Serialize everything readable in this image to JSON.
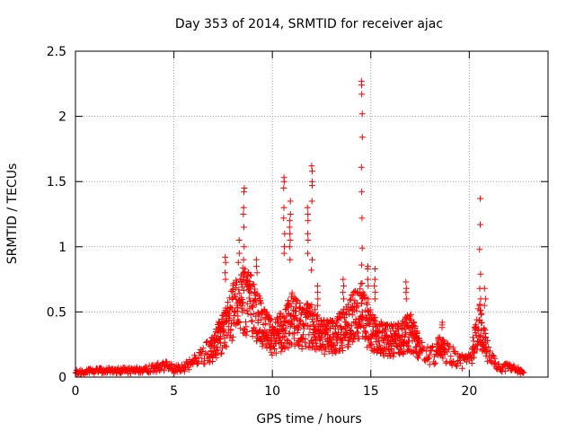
{
  "chart_data": {
    "type": "scatter",
    "title": "Day 353 of 2014, SRMTID for receiver ajac",
    "xlabel": "GPS time / hours",
    "ylabel": "SRMTID / TECUs",
    "xlim": [
      0,
      24
    ],
    "ylim": [
      0,
      2.5
    ],
    "xticks": [
      0,
      5,
      10,
      15,
      20
    ],
    "yticks": [
      0,
      0.5,
      1,
      1.5,
      2,
      2.5
    ],
    "ytick_labels": [
      "0",
      "0.5",
      "1",
      "1.5",
      "2",
      "2.5"
    ],
    "grid": true,
    "marker": "+",
    "color": "#ff0000",
    "profile": [
      [
        0,
        0.04
      ],
      [
        1,
        0.05
      ],
      [
        2,
        0.05
      ],
      [
        3,
        0.05
      ],
      [
        4,
        0.07
      ],
      [
        4.6,
        0.09
      ],
      [
        5,
        0.06
      ],
      [
        5.5,
        0.07
      ],
      [
        6,
        0.12
      ],
      [
        6.5,
        0.17
      ],
      [
        7,
        0.22
      ],
      [
        7.5,
        0.35
      ],
      [
        8,
        0.5
      ],
      [
        8.5,
        0.6
      ],
      [
        9,
        0.55
      ],
      [
        9.5,
        0.4
      ],
      [
        10,
        0.3
      ],
      [
        10.5,
        0.35
      ],
      [
        11,
        0.45
      ],
      [
        11.5,
        0.38
      ],
      [
        12,
        0.4
      ],
      [
        12.5,
        0.32
      ],
      [
        13,
        0.3
      ],
      [
        13.5,
        0.35
      ],
      [
        14,
        0.45
      ],
      [
        14.5,
        0.5
      ],
      [
        15,
        0.35
      ],
      [
        15.5,
        0.3
      ],
      [
        16,
        0.28
      ],
      [
        16.5,
        0.3
      ],
      [
        17,
        0.35
      ],
      [
        17.5,
        0.2
      ],
      [
        18,
        0.15
      ],
      [
        18.5,
        0.22
      ],
      [
        19,
        0.18
      ],
      [
        19.5,
        0.12
      ],
      [
        20,
        0.12
      ],
      [
        20.5,
        0.4
      ],
      [
        21,
        0.15
      ],
      [
        21.5,
        0.07
      ],
      [
        22,
        0.08
      ],
      [
        22.5,
        0.05
      ],
      [
        22.8,
        0.03
      ]
    ],
    "highlights": [
      {
        "x": 8.55,
        "values": [
          1.45,
          1.42,
          1.3,
          1.25,
          1.15,
          1.0,
          0.9,
          0.8
        ]
      },
      {
        "x": 8.3,
        "values": [
          1.05,
          0.95,
          0.88
        ]
      },
      {
        "x": 7.6,
        "values": [
          0.92,
          0.88,
          0.8,
          0.75
        ]
      },
      {
        "x": 9.2,
        "values": [
          0.9,
          0.85,
          0.8
        ]
      },
      {
        "x": 10.6,
        "values": [
          1.53,
          1.5,
          1.45,
          1.3,
          1.22,
          1.1,
          1.0,
          0.95
        ]
      },
      {
        "x": 10.9,
        "values": [
          1.35,
          1.25,
          1.2,
          1.15,
          1.1,
          1.05,
          1.0,
          0.9
        ]
      },
      {
        "x": 11.8,
        "values": [
          1.3,
          1.25,
          1.2,
          1.1,
          1.05,
          0.95
        ]
      },
      {
        "x": 12.0,
        "values": [
          1.62,
          1.58,
          1.5,
          1.47,
          1.35,
          0.9,
          0.82
        ]
      },
      {
        "x": 12.3,
        "values": [
          0.7,
          0.65,
          0.6,
          0.55
        ]
      },
      {
        "x": 13.6,
        "values": [
          0.75,
          0.7,
          0.65,
          0.6
        ]
      },
      {
        "x": 14.55,
        "values": [
          2.27,
          2.24,
          2.17,
          2.02,
          1.84,
          1.61,
          1.42,
          1.22,
          0.99,
          0.86,
          0.72,
          0.6,
          0.5
        ]
      },
      {
        "x": 14.85,
        "values": [
          0.85,
          0.83,
          0.75,
          0.7,
          0.6
        ]
      },
      {
        "x": 15.2,
        "values": [
          0.83,
          0.75,
          0.7,
          0.65,
          0.6
        ]
      },
      {
        "x": 16.8,
        "values": [
          0.73,
          0.68,
          0.65,
          0.6
        ]
      },
      {
        "x": 18.6,
        "values": [
          0.42,
          0.4,
          0.38
        ]
      },
      {
        "x": 20.55,
        "values": [
          1.37,
          1.17,
          0.98,
          0.79,
          0.68,
          0.6,
          0.55
        ]
      },
      {
        "x": 20.8,
        "values": [
          0.68,
          0.6,
          0.55
        ]
      }
    ]
  }
}
